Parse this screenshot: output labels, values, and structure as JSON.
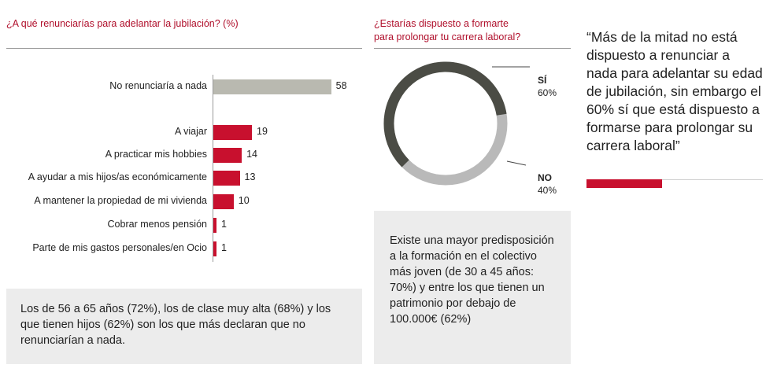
{
  "chart_data": [
    {
      "type": "bar",
      "orientation": "horizontal",
      "title": "¿A qué renunciarías para adelantar la jubilación? (%)",
      "categories": [
        "No renunciaría a nada",
        "A viajar",
        "A practicar mis hobbies",
        "A ayudar a mis hijos/as económicamente",
        "A mantener la propiedad de mi vivienda",
        "Cobrar menos pensión",
        "Parte de mis gastos personales/en Ocio"
      ],
      "values": [
        58,
        19,
        14,
        13,
        10,
        1,
        1
      ],
      "colors": [
        "#b9b9b0",
        "#c8102e",
        "#c8102e",
        "#c8102e",
        "#c8102e",
        "#c8102e",
        "#c8102e"
      ],
      "xlim": [
        0,
        60
      ]
    },
    {
      "type": "pie",
      "style": "donut",
      "title_line1": "¿Estarías dispuesto a formarte",
      "title_line2": "para prolongar tu carrera laboral?",
      "slices": [
        {
          "label": "SÍ",
          "value": 60,
          "value_text": "60%",
          "color": "#4b4c45"
        },
        {
          "label": "NO",
          "value": 40,
          "value_text": "40%",
          "color": "#b9b9b9"
        }
      ]
    }
  ],
  "note_left": "Los de 56 a 65 años (72%), los de clase muy alta (68%) y los que tienen hijos (62%) son los que más declaran que no renunciarían a nada.",
  "note_middle": "Existe una mayor predisposición a la formación en el colectivo más joven (de 30 a 45 años: 70%) y entre los que tienen un patrimonio por debajo de 100.000€ (62%)",
  "quote": "“Más de la mitad no está dispuesto a renunciar a nada para adelantar su edad de jubilación, sin embargo el 60% sí que está dispuesto a formarse para prolongar su carrera laboral”",
  "colors": {
    "accent": "#c8102e",
    "title": "#b0102c",
    "panel": "#ececec"
  }
}
